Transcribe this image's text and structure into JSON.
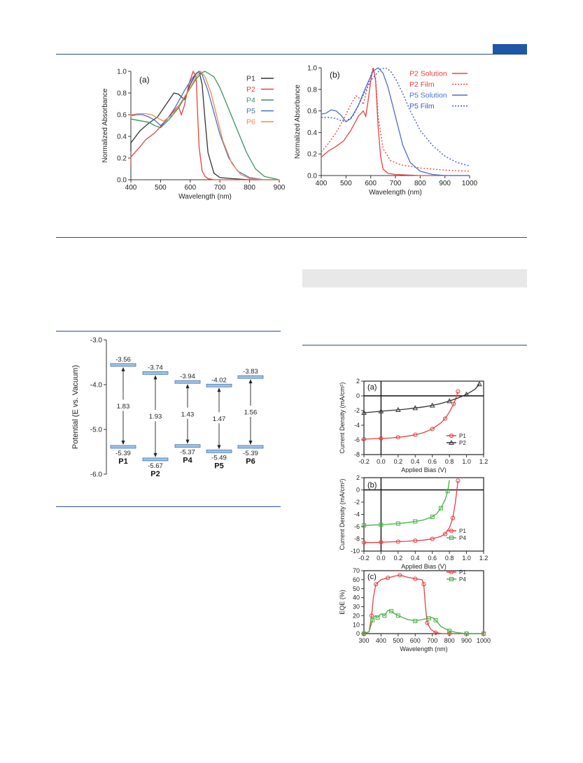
{
  "colors": {
    "rule": "#2b4e8c",
    "corner": "#1f57a8",
    "band": "#e8e8e8"
  },
  "chart_data": [
    {
      "id": "abs_a",
      "type": "line",
      "panel_label": "(a)",
      "xlabel": "Wavelength (nm)",
      "ylabel": "Normalized Absorbance",
      "xlim": [
        400,
        900
      ],
      "ylim": [
        0.0,
        1.0
      ],
      "xticks": [
        "400",
        "500",
        "600",
        "700",
        "800",
        "900"
      ],
      "yticks": [
        "0.0",
        "0.2",
        "0.4",
        "0.6",
        "0.8",
        "1.0"
      ],
      "legend": "top-right",
      "series": [
        {
          "name": "P1",
          "color": "#333333",
          "dash": "solid",
          "x": [
            380,
            400,
            430,
            460,
            490,
            520,
            545,
            560,
            580,
            600,
            620,
            630,
            640,
            650,
            660,
            680,
            700,
            740,
            800,
            900
          ],
          "y": [
            0.26,
            0.34,
            0.45,
            0.52,
            0.58,
            0.7,
            0.8,
            0.79,
            0.74,
            0.88,
            0.98,
            1.0,
            0.88,
            0.55,
            0.25,
            0.06,
            0.02,
            0.01,
            0.0,
            0.0
          ]
        },
        {
          "name": "P2",
          "color": "#e84040",
          "dash": "solid",
          "x": [
            380,
            400,
            430,
            450,
            480,
            510,
            540,
            560,
            570,
            580,
            595,
            610,
            620,
            625,
            630,
            640,
            650,
            660,
            680,
            700,
            900
          ],
          "y": [
            0.15,
            0.21,
            0.3,
            0.37,
            0.43,
            0.52,
            0.62,
            0.68,
            0.6,
            0.68,
            0.88,
            1.0,
            0.95,
            0.6,
            0.3,
            0.08,
            0.03,
            0.01,
            0.0,
            0.0,
            0.0
          ]
        },
        {
          "name": "P4",
          "color": "#3a9460",
          "dash": "solid",
          "x": [
            380,
            420,
            460,
            480,
            500,
            530,
            560,
            590,
            620,
            640,
            650,
            680,
            700,
            730,
            760,
            790,
            820,
            850,
            900
          ],
          "y": [
            0.56,
            0.55,
            0.53,
            0.5,
            0.48,
            0.56,
            0.66,
            0.8,
            0.93,
            0.99,
            1.0,
            0.95,
            0.85,
            0.65,
            0.45,
            0.25,
            0.1,
            0.03,
            0.0
          ]
        },
        {
          "name": "P5",
          "color": "#4a6fc7",
          "dash": "solid",
          "x": [
            380,
            400,
            420,
            440,
            460,
            480,
            500,
            520,
            550,
            580,
            610,
            630,
            640,
            660,
            680,
            700,
            730,
            760,
            800,
            850,
            900
          ],
          "y": [
            0.58,
            0.59,
            0.6,
            0.6,
            0.58,
            0.55,
            0.5,
            0.55,
            0.67,
            0.82,
            0.95,
            1.0,
            0.97,
            0.82,
            0.62,
            0.42,
            0.2,
            0.08,
            0.02,
            0.0,
            0.0
          ]
        },
        {
          "name": "P6",
          "color": "#f08a4a",
          "dash": "solid",
          "x": [
            380,
            400,
            430,
            450,
            470,
            490,
            510,
            540,
            570,
            600,
            620,
            635,
            650,
            670,
            690,
            710,
            740,
            770,
            800,
            850,
            900
          ],
          "y": [
            0.58,
            0.6,
            0.61,
            0.61,
            0.6,
            0.57,
            0.54,
            0.6,
            0.72,
            0.85,
            0.95,
            1.0,
            0.95,
            0.8,
            0.58,
            0.36,
            0.15,
            0.05,
            0.01,
            0.0,
            0.0
          ]
        }
      ]
    },
    {
      "id": "abs_b",
      "type": "line",
      "panel_label": "(b)",
      "xlabel": "Wavelength (nm)",
      "ylabel": "Normalized Absorbance",
      "xlim": [
        400,
        1000
      ],
      "ylim": [
        0.0,
        1.0
      ],
      "xticks": [
        "400",
        "500",
        "600",
        "700",
        "800",
        "900",
        "1000"
      ],
      "yticks": [
        "0.0",
        "0.2",
        "0.4",
        "0.6",
        "0.8",
        "1.0"
      ],
      "legend": "top-right",
      "series": [
        {
          "name": "P2 Solution",
          "color": "#e84040",
          "dash": "solid",
          "x": [
            400,
            430,
            460,
            490,
            520,
            550,
            570,
            580,
            590,
            600,
            610,
            620,
            630,
            640,
            650,
            670,
            700,
            800,
            1000
          ],
          "y": [
            0.17,
            0.23,
            0.27,
            0.32,
            0.42,
            0.55,
            0.6,
            0.55,
            0.7,
            0.88,
            1.0,
            0.88,
            0.45,
            0.18,
            0.06,
            0.02,
            0.01,
            0.0,
            0.0
          ]
        },
        {
          "name": "P2 Film",
          "color": "#e84040",
          "dash": "dotted",
          "x": [
            400,
            430,
            460,
            490,
            520,
            540,
            550,
            570,
            590,
            610,
            620,
            630,
            650,
            680,
            720,
            800,
            900,
            1000
          ],
          "y": [
            0.22,
            0.3,
            0.4,
            0.52,
            0.66,
            0.74,
            0.73,
            0.66,
            0.85,
            1.0,
            0.9,
            0.55,
            0.25,
            0.14,
            0.1,
            0.07,
            0.05,
            0.04
          ]
        },
        {
          "name": "P5 Solution",
          "color": "#4a6fc7",
          "dash": "solid",
          "x": [
            400,
            420,
            440,
            460,
            480,
            500,
            520,
            550,
            580,
            610,
            630,
            650,
            670,
            700,
            730,
            760,
            800,
            850,
            900,
            1000
          ],
          "y": [
            0.57,
            0.58,
            0.61,
            0.6,
            0.56,
            0.5,
            0.53,
            0.65,
            0.82,
            0.97,
            1.0,
            0.95,
            0.82,
            0.55,
            0.28,
            0.12,
            0.04,
            0.01,
            0.0,
            0.0
          ]
        },
        {
          "name": "P5 Film",
          "color": "#3a56c4",
          "dash": "dotted",
          "x": [
            400,
            430,
            460,
            480,
            500,
            530,
            560,
            600,
            640,
            660,
            680,
            700,
            730,
            760,
            800,
            850,
            900,
            950,
            1000
          ],
          "y": [
            0.54,
            0.54,
            0.53,
            0.51,
            0.5,
            0.56,
            0.7,
            0.88,
            0.99,
            1.0,
            0.97,
            0.9,
            0.76,
            0.6,
            0.42,
            0.28,
            0.18,
            0.12,
            0.09
          ]
        }
      ]
    },
    {
      "id": "energy",
      "type": "diagram",
      "ylabel": "Potential (E vs. Vacuum)",
      "ylim": [
        -6.0,
        -3.0
      ],
      "yticks": [
        "-3.0",
        "-4.0",
        "-5.0",
        "-6.0"
      ],
      "polymers": [
        {
          "name": "P1",
          "lumo": -3.56,
          "homo": -5.39,
          "lumo_label": "-3.56",
          "homo_label": "-5.39",
          "gap_label": "1.83"
        },
        {
          "name": "P2",
          "lumo": -3.74,
          "homo": -5.67,
          "lumo_label": "-3.74",
          "homo_label": "-5.67",
          "gap_label": "1.93"
        },
        {
          "name": "P4",
          "lumo": -3.94,
          "homo": -5.37,
          "lumo_label": "-3.94",
          "homo_label": "-5.37",
          "gap_label": "1.43"
        },
        {
          "name": "P5",
          "lumo": -4.02,
          "homo": -5.49,
          "lumo_label": "-4.02",
          "homo_label": "-5.49",
          "gap_label": "1.47"
        },
        {
          "name": "P6",
          "lumo": -3.83,
          "homo": -5.39,
          "lumo_label": "-3.83",
          "homo_label": "-5.39",
          "gap_label": "1.56"
        }
      ]
    },
    {
      "id": "jv_a",
      "type": "line",
      "panel_label": "(a)",
      "xlabel": "Applied Bias (V)",
      "ylabel": "Current Density (mA/cm²)",
      "xlim": [
        -0.2,
        1.2
      ],
      "ylim": [
        -8,
        2
      ],
      "xticks": [
        "-0.2",
        "0.0",
        "0.2",
        "0.4",
        "0.6",
        "0.8",
        "1.0",
        "1.2"
      ],
      "yticks": [
        "2",
        "0",
        "-2",
        "-4",
        "-6",
        "-8"
      ],
      "legend": "bottom-right",
      "series": [
        {
          "name": "P1",
          "color": "#e84040",
          "marker": "circle",
          "x": [
            -0.2,
            -0.1,
            0.0,
            0.1,
            0.2,
            0.3,
            0.4,
            0.5,
            0.6,
            0.7,
            0.75,
            0.8,
            0.85,
            0.88,
            0.9
          ],
          "y": [
            -5.9,
            -5.85,
            -5.8,
            -5.75,
            -5.65,
            -5.5,
            -5.3,
            -5.0,
            -4.5,
            -3.7,
            -3.1,
            -2.2,
            -1.1,
            -0.2,
            0.6
          ]
        },
        {
          "name": "P2",
          "color": "#333333",
          "marker": "triangle",
          "x": [
            -0.2,
            -0.1,
            0.0,
            0.1,
            0.2,
            0.3,
            0.4,
            0.5,
            0.6,
            0.7,
            0.8,
            0.9,
            1.0,
            1.1,
            1.15
          ],
          "y": [
            -2.3,
            -2.2,
            -2.1,
            -2.0,
            -1.9,
            -1.8,
            -1.65,
            -1.5,
            -1.3,
            -1.05,
            -0.7,
            -0.3,
            0.2,
            0.9,
            1.6
          ]
        }
      ]
    },
    {
      "id": "jv_b",
      "type": "line",
      "panel_label": "(b)",
      "xlabel": "Applied Bias (V)",
      "ylabel": "Current Density (mA/cm²)",
      "xlim": [
        -0.2,
        1.2
      ],
      "ylim": [
        -10,
        2
      ],
      "xticks": [
        "-0.2",
        "0.0",
        "0.2",
        "0.4",
        "0.6",
        "0.8",
        "1.0",
        "1.2"
      ],
      "yticks": [
        "2",
        "0",
        "-2",
        "-4",
        "-6",
        "-8",
        "-10"
      ],
      "legend": "bottom-right",
      "series": [
        {
          "name": "P1",
          "color": "#e84040",
          "marker": "circle",
          "x": [
            -0.2,
            -0.1,
            0.0,
            0.1,
            0.2,
            0.3,
            0.4,
            0.5,
            0.6,
            0.7,
            0.75,
            0.8,
            0.84,
            0.87,
            0.9
          ],
          "y": [
            -8.6,
            -8.6,
            -8.55,
            -8.5,
            -8.45,
            -8.4,
            -8.3,
            -8.2,
            -8.0,
            -7.6,
            -7.2,
            -6.2,
            -4.6,
            -2.0,
            1.5
          ]
        },
        {
          "name": "P4",
          "color": "#44b044",
          "marker": "square",
          "x": [
            -0.2,
            -0.1,
            0.0,
            0.1,
            0.2,
            0.3,
            0.4,
            0.5,
            0.6,
            0.65,
            0.7,
            0.75,
            0.78,
            0.8
          ],
          "y": [
            -5.8,
            -5.75,
            -5.7,
            -5.6,
            -5.5,
            -5.35,
            -5.15,
            -4.9,
            -4.4,
            -3.9,
            -3.0,
            -1.6,
            -0.2,
            1.6
          ]
        }
      ]
    },
    {
      "id": "eqe",
      "type": "line",
      "panel_label": "(c)",
      "xlabel": "Wavelength (nm)",
      "ylabel": "EQE (%)",
      "xlim": [
        300,
        1000
      ],
      "ylim": [
        0,
        70
      ],
      "xticks": [
        "300",
        "400",
        "500",
        "600",
        "700",
        "800",
        "900",
        "1000"
      ],
      "yticks": [
        "0",
        "10",
        "20",
        "30",
        "40",
        "50",
        "60",
        "70"
      ],
      "legend": "top-right",
      "series": [
        {
          "name": "P1",
          "color": "#e84040",
          "marker": "circle",
          "x": [
            300,
            330,
            345,
            355,
            370,
            400,
            440,
            480,
            510,
            550,
            600,
            640,
            650,
            660,
            670,
            690,
            720,
            760,
            800,
            850,
            900,
            950,
            1000
          ],
          "y": [
            0,
            2,
            20,
            40,
            55,
            60,
            62,
            64,
            65,
            63,
            61,
            60,
            55,
            30,
            12,
            5,
            1,
            0,
            0,
            0,
            0,
            0,
            0
          ]
        },
        {
          "name": "P4",
          "color": "#44b044",
          "marker": "square",
          "x": [
            300,
            330,
            350,
            365,
            380,
            400,
            420,
            440,
            460,
            480,
            500,
            550,
            600,
            650,
            680,
            700,
            720,
            750,
            800,
            850,
            900,
            950,
            1000
          ],
          "y": [
            0,
            2,
            15,
            20,
            18,
            22,
            20,
            26,
            25,
            22,
            20,
            16,
            14,
            16,
            17,
            18,
            15,
            8,
            3,
            1,
            0,
            0,
            0
          ]
        }
      ]
    }
  ]
}
